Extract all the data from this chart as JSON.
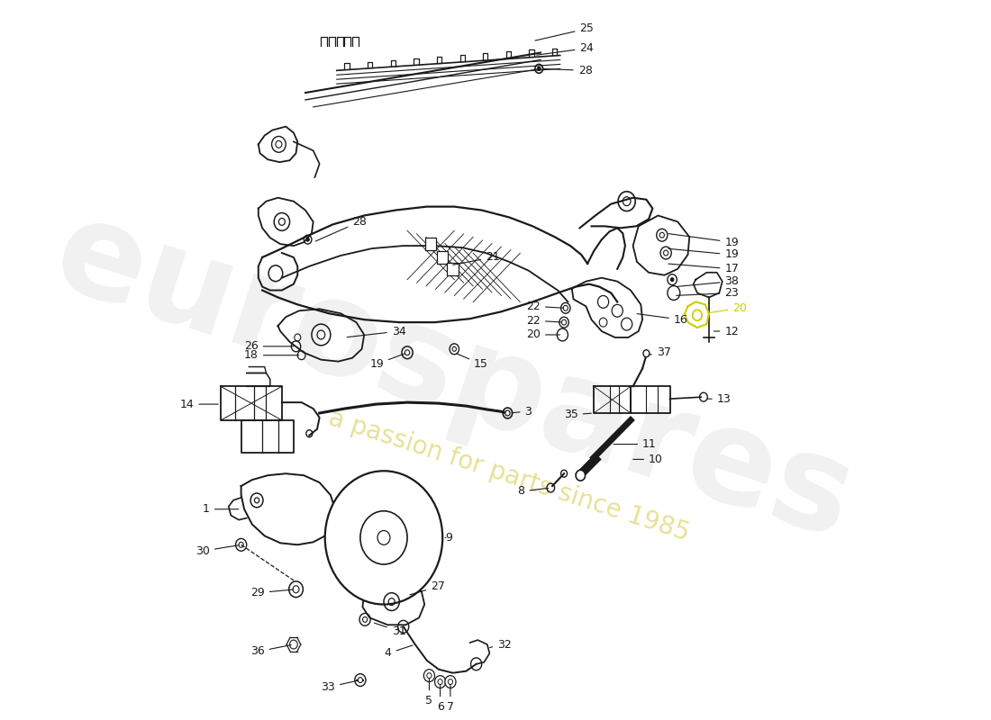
{
  "background_color": "#ffffff",
  "line_color": "#1a1a1a",
  "watermark_text1": "eurospares",
  "watermark_text2": "a passion for parts since 1985",
  "label_fontsize": 9,
  "lw_main": 1.4,
  "lw_thin": 0.8,
  "lw_thick": 2.2
}
